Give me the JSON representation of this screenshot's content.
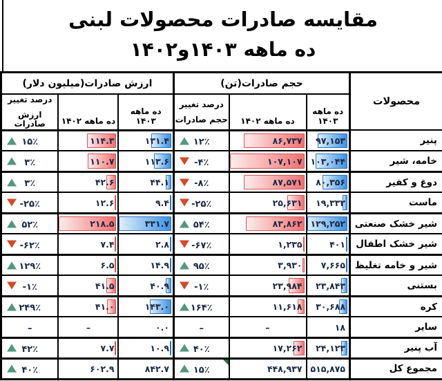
{
  "title": {
    "line1": "مقایسه صادرات محصولات لبنی",
    "line2": "ده ماهه ۱۴۰۳و۱۴۰۲"
  },
  "header": {
    "products": "محصولات",
    "volume_group": "حجم صادرات(تن)",
    "value_group": "ارزش صادرات(میلیون دلار)",
    "period_1403": "ده ماهه ۱۴۰۳",
    "period_1402": "ده ماهه ۱۴۰۲",
    "volume_change_l1": "درصد تغییر",
    "volume_change_l2": "حجم صادرات",
    "value_change_l1": "درصد تغییر",
    "value_change_l2": "ارزش صادرات"
  },
  "colors": {
    "grid": "#000000",
    "header_text": "#000000",
    "number_text": "#1b2944",
    "bar_blue": "#3f92e2",
    "bar_blue_light": "#ddeefb",
    "bar_blue_border": "#2a72c2",
    "bar_red": "#f37070",
    "bar_red_light": "#fdecec",
    "bar_red_border": "#d65454",
    "change_up": "#55977e",
    "change_down": "#d44a28",
    "comment_marker": "#1d6f42"
  },
  "table": {
    "rows": [
      {
        "name": "پنیر",
        "vol3": "۹۷,۱۵۳",
        "vol3n": 97153,
        "vol2": "۸۶,۷۳۷",
        "vol2n": 86737,
        "volc": "۱۲٪",
        "volcd": "up",
        "val3": "۱۳۱.۴",
        "val3n": 131.4,
        "val2": "۱۱۴.۳",
        "val2n": 114.3,
        "valc": "۱۵٪",
        "valcd": "up"
      },
      {
        "name": "خامه، شیر",
        "vol3": "۱۰۳,۰۴۴",
        "vol3n": 103044,
        "vol2": "۱۰۷,۱۰۷",
        "vol2n": 107107,
        "volc": "-۴٪",
        "volcd": "down",
        "val3": "۱۱۳.۶",
        "val3n": 113.6,
        "val2": "۱۱۰.۷",
        "val2n": 110.7,
        "valc": "۳٪",
        "valcd": "up"
      },
      {
        "name": "دوغ و کفیر",
        "vol3": "۸۰,۳۵۶",
        "vol3n": 80356,
        "vol2": "۸۷,۵۷۱",
        "vol2n": 87571,
        "volc": "-۸٪",
        "volcd": "down",
        "val3": "۴۴.۱",
        "val3n": 44.1,
        "val2": "۴۲.۶",
        "val2n": 42.6,
        "valc": "۳٪",
        "valcd": "up"
      },
      {
        "name": "ماست",
        "vol3": "۱۹,۳۳۲",
        "vol3n": 19332,
        "vol2": "۲۵,۶۳۱",
        "vol2n": 25631,
        "volc": "-۲۵٪",
        "volcd": "down",
        "val3": "۹.۴",
        "val3n": 9.4,
        "val2": "۱۲.۶",
        "val2n": 12.6,
        "valc": "-۲۵٪",
        "valcd": "down"
      },
      {
        "name": "شیر خشک صنعتی",
        "vol3": "۱۲۹,۲۵۲",
        "vol3n": 129252,
        "vol2": "۸۳,۸۶۲",
        "vol2n": 83862,
        "volc": "۵۴٪",
        "volcd": "up",
        "val3": "۳۳۱.۷",
        "val3n": 331.7,
        "val2": "۲۱۸.۵",
        "val2n": 218.5,
        "valc": "۵۲٪",
        "valcd": "up"
      },
      {
        "name": "شیر خشک اطفال",
        "vol3": "۴۰۱",
        "vol3n": 401,
        "vol2": "۱,۲۳۵",
        "vol2n": 1235,
        "volc": "-۶۷٪",
        "volcd": "down",
        "val3": "۲.۸",
        "val3n": 2.8,
        "val2": "۷.۴",
        "val2n": 7.4,
        "valc": "-۶۲٪",
        "valcd": "down"
      },
      {
        "name": "شیر و خامه تغلیظ",
        "vol3": "۷,۶۶۵",
        "vol3n": 7665,
        "vol2": "۳,۹۳۰",
        "vol2n": 3930,
        "volc": "۹۵٪",
        "volcd": "up",
        "val3": "۱۴.۹",
        "val3n": 14.9,
        "val2": "۶.۵",
        "val2n": 6.5,
        "valc": "۱۲۹٪",
        "valcd": "up"
      },
      {
        "name": "بستنی",
        "vol3": "۲۳,۸۴۳",
        "vol3n": 23843,
        "vol2": "۲۳,۹۸۴",
        "vol2n": 23984,
        "volc": "-۱٪",
        "volcd": "down",
        "val3": "۴۰.۹",
        "val3n": 40.9,
        "val2": "۴۱.۵",
        "val2n": 41.5,
        "valc": "-۱٪",
        "valcd": "down"
      },
      {
        "name": "کره",
        "vol3": "۳۰,۶۸۸",
        "vol3n": 30688,
        "vol2": "۱۱,۶۱۸",
        "vol2n": 11618,
        "volc": "۱۶۴٪",
        "volcd": "up",
        "val3": "۱۴۳.۰",
        "val3n": 143.0,
        "val2": "۴۱.۰",
        "val2n": 41.0,
        "valc": "۲۴۹٪",
        "valcd": "up"
      },
      {
        "name": "سایر",
        "vol3": "۱۸",
        "vol3n": 18,
        "vol2": "–",
        "vol2n": null,
        "volc": "–",
        "volcd": "none",
        "val3": "۰.۰",
        "val3n": 0,
        "val2": "–",
        "val2n": null,
        "valc": "–",
        "valcd": "none"
      },
      {
        "name": "آب پنیر",
        "vol3": "۲۴,۱۲۳",
        "vol3n": 24123,
        "vol2": "۱۷,۲۶۲",
        "vol2n": 17262,
        "volc": "۴۰٪",
        "volcd": "up",
        "val3": "۱۰.۹",
        "val3n": 10.9,
        "val2": "۷.۷",
        "val2n": 7.7,
        "valc": "۴۲٪",
        "valcd": "up"
      }
    ],
    "total_row": {
      "name": "مجموع کل",
      "vol3": "۵۱۵,۸۷۵",
      "vol2": "۴۴۸,۹۳۷",
      "volc": "۱۵٪",
      "volcd": "up",
      "val3": "۸۴۲.۷",
      "val2": "۶۰۲.۹",
      "valc": "۴۰٪",
      "valcd": "up",
      "marker": true
    }
  },
  "chart_data": {
    "type": "table",
    "title": "مقایسه صادرات محصولات لبنی - ده ماهه ۱۴۰۳و۱۴۰۲",
    "columns": [
      "محصولات",
      "حجم صادرات ده ماهه ۱۴۰۳ (تن)",
      "حجم صادرات ده ماهه ۱۴۰۲ (تن)",
      "درصد تغییر حجم صادرات",
      "ارزش صادرات ده ماهه ۱۴۰۳ (میلیون دلار)",
      "ارزش صادرات ده ماهه ۱۴۰۲ (میلیون دلار)",
      "درصد تغییر ارزش صادرات"
    ],
    "rows": [
      [
        "پنیر",
        97153,
        86737,
        12,
        131.4,
        114.3,
        15
      ],
      [
        "خامه، شیر",
        103044,
        107107,
        -4,
        113.6,
        110.7,
        3
      ],
      [
        "دوغ و کفیر",
        80356,
        87571,
        -8,
        44.1,
        42.6,
        3
      ],
      [
        "ماست",
        19332,
        25631,
        -25,
        9.4,
        12.6,
        -25
      ],
      [
        "شیر خشک صنعتی",
        129252,
        83862,
        54,
        331.7,
        218.5,
        52
      ],
      [
        "شیر خشک اطفال",
        401,
        1235,
        -67,
        2.8,
        7.4,
        -62
      ],
      [
        "شیر و خامه تغلیظ",
        7665,
        3930,
        95,
        14.9,
        6.5,
        129
      ],
      [
        "بستنی",
        23843,
        23984,
        -1,
        40.9,
        41.5,
        -1
      ],
      [
        "کره",
        30688,
        11618,
        164,
        143.0,
        41.0,
        249
      ],
      [
        "سایر",
        18,
        null,
        null,
        0.0,
        null,
        null
      ],
      [
        "آب پنیر",
        24123,
        17262,
        40,
        10.9,
        7.7,
        42
      ],
      [
        "مجموع کل",
        515875,
        448937,
        15,
        842.7,
        602.9,
        40
      ]
    ]
  }
}
